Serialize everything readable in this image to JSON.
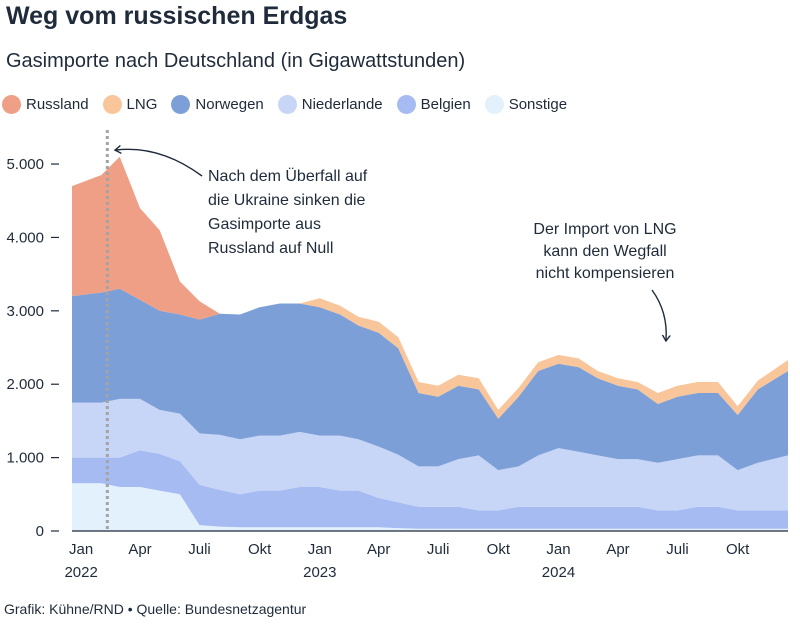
{
  "header": {
    "title": "Weg vom russischen Erdgas",
    "subtitle": "Gasimporte nach Deutschland (in Gigawattstunden)"
  },
  "footer": {
    "credit": "Grafik: Kühne/RND • Quelle: Bundesnetzagentur"
  },
  "colors": {
    "Russland": "#ef9f86",
    "LNG": "#f8c69a",
    "Norwegen": "#7d9fd8",
    "Niederlande": "#c7d5f6",
    "Belgien": "#a5bbf1",
    "Sonstige": "#e3f1fc",
    "marker": "#a3a3a3",
    "axis": "#1f2b3a"
  },
  "annotations": [
    {
      "id": "ukraine",
      "lines": [
        "Nach dem Überfall auf",
        "die Ukraine sinken die",
        "Gasimporte aus",
        "Russland auf Null"
      ]
    },
    {
      "id": "lng",
      "lines": [
        "Der Import von LNG",
        "kann den Wegfall",
        "nicht kompensieren"
      ]
    }
  ],
  "chart_data": {
    "type": "area",
    "stacked": true,
    "title": "Gasimporte nach Deutschland (in Gigawattstunden)",
    "ylim": [
      0,
      5600
    ],
    "yticks": [
      0,
      1000,
      2000,
      3000,
      4000,
      5000
    ],
    "ytick_labels": [
      "0",
      "1.000",
      "2.000",
      "3.000",
      "4.000",
      "5.000"
    ],
    "xlim": [
      "2022-01-01",
      "2024-12-31"
    ],
    "xticks": [
      {
        "date": "2022-01-15",
        "label": "Jan",
        "year": "2022"
      },
      {
        "date": "2022-04-15",
        "label": "Apr",
        "year": ""
      },
      {
        "date": "2022-07-15",
        "label": "Juli",
        "year": ""
      },
      {
        "date": "2022-10-15",
        "label": "Okt",
        "year": ""
      },
      {
        "date": "2023-01-15",
        "label": "Jan",
        "year": "2023"
      },
      {
        "date": "2023-04-15",
        "label": "Apr",
        "year": ""
      },
      {
        "date": "2023-07-15",
        "label": "Juli",
        "year": ""
      },
      {
        "date": "2023-10-15",
        "label": "Okt",
        "year": ""
      },
      {
        "date": "2024-01-15",
        "label": "Jan",
        "year": "2024"
      },
      {
        "date": "2024-04-15",
        "label": "Apr",
        "year": ""
      },
      {
        "date": "2024-07-15",
        "label": "Juli",
        "year": ""
      },
      {
        "date": "2024-10-15",
        "label": "Okt",
        "year": ""
      }
    ],
    "marker_date": "2022-02-24",
    "legend": "top",
    "grid": false,
    "x": [
      "2022-01",
      "2022-02",
      "2022-03",
      "2022-04",
      "2022-05",
      "2022-06",
      "2022-07",
      "2022-08",
      "2022-09",
      "2022-10",
      "2022-11",
      "2022-12",
      "2023-01",
      "2023-02",
      "2023-03",
      "2023-04",
      "2023-05",
      "2023-06",
      "2023-07",
      "2023-08",
      "2023-09",
      "2023-10",
      "2023-11",
      "2023-12",
      "2024-01",
      "2024-02",
      "2024-03",
      "2024-04",
      "2024-05",
      "2024-06",
      "2024-07",
      "2024-08",
      "2024-09",
      "2024-10",
      "2024-11",
      "2024-12"
    ],
    "series": [
      {
        "name": "Sonstige",
        "values": [
          650,
          650,
          600,
          600,
          550,
          500,
          80,
          60,
          50,
          50,
          50,
          50,
          50,
          50,
          50,
          50,
          40,
          30,
          30,
          30,
          30,
          30,
          30,
          30,
          30,
          30,
          30,
          30,
          30,
          30,
          30,
          30,
          30,
          30,
          30,
          30
        ]
      },
      {
        "name": "Belgien",
        "values": [
          350,
          350,
          400,
          500,
          500,
          450,
          550,
          500,
          450,
          500,
          500,
          550,
          550,
          500,
          500,
          400,
          350,
          300,
          300,
          300,
          250,
          250,
          300,
          300,
          300,
          300,
          300,
          300,
          300,
          250,
          250,
          300,
          300,
          250,
          250,
          250
        ]
      },
      {
        "name": "Niederlande",
        "values": [
          750,
          750,
          800,
          700,
          600,
          650,
          700,
          750,
          750,
          750,
          750,
          750,
          700,
          750,
          700,
          700,
          650,
          550,
          550,
          650,
          750,
          550,
          550,
          700,
          800,
          750,
          700,
          650,
          650,
          650,
          700,
          700,
          700,
          550,
          650,
          750
        ]
      },
      {
        "name": "Norwegen",
        "values": [
          1450,
          1500,
          1500,
          1350,
          1350,
          1350,
          1550,
          1650,
          1700,
          1750,
          1800,
          1750,
          1750,
          1650,
          1550,
          1550,
          1450,
          1000,
          950,
          1000,
          900,
          700,
          950,
          1150,
          1150,
          1150,
          1050,
          1000,
          950,
          800,
          850,
          850,
          850,
          750,
          1000,
          1150
        ]
      },
      {
        "name": "LNG",
        "values": [
          0,
          0,
          0,
          0,
          0,
          0,
          0,
          0,
          0,
          0,
          0,
          0,
          120,
          120,
          120,
          150,
          150,
          150,
          150,
          150,
          150,
          120,
          120,
          120,
          120,
          120,
          100,
          100,
          100,
          150,
          150,
          150,
          150,
          120,
          120,
          150
        ]
      },
      {
        "name": "Russland",
        "values": [
          1500,
          1600,
          1800,
          1250,
          1100,
          450,
          250,
          0,
          0,
          0,
          0,
          0,
          0,
          0,
          0,
          0,
          0,
          0,
          0,
          0,
          0,
          0,
          0,
          0,
          0,
          0,
          0,
          0,
          0,
          0,
          0,
          0,
          0,
          0,
          0,
          0
        ]
      }
    ]
  }
}
